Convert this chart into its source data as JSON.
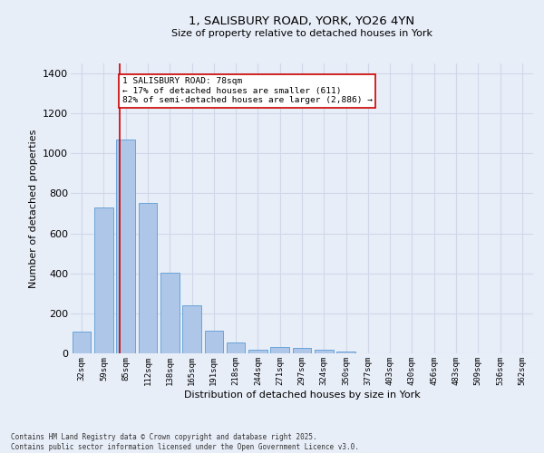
{
  "title_line1": "1, SALISBURY ROAD, YORK, YO26 4YN",
  "title_line2": "Size of property relative to detached houses in York",
  "xlabel": "Distribution of detached houses by size in York",
  "ylabel": "Number of detached properties",
  "categories": [
    "32sqm",
    "59sqm",
    "85sqm",
    "112sqm",
    "138sqm",
    "165sqm",
    "191sqm",
    "218sqm",
    "244sqm",
    "271sqm",
    "297sqm",
    "324sqm",
    "350sqm",
    "377sqm",
    "403sqm",
    "430sqm",
    "456sqm",
    "483sqm",
    "509sqm",
    "536sqm",
    "562sqm"
  ],
  "values": [
    110,
    730,
    1070,
    750,
    405,
    238,
    115,
    55,
    18,
    30,
    25,
    18,
    8,
    0,
    0,
    0,
    0,
    0,
    0,
    0,
    0
  ],
  "bar_color": "#aec6e8",
  "bar_edge_color": "#5b9bd5",
  "grid_color": "#d0d8e8",
  "background_color": "#e8eef8",
  "annotation_text_line1": "1 SALISBURY ROAD: 78sqm",
  "annotation_text_line2": "← 17% of detached houses are smaller (611)",
  "annotation_text_line3": "82% of semi-detached houses are larger (2,886) →",
  "annotation_box_color": "#ffffff",
  "annotation_line_color": "#cc0000",
  "ylim": [
    0,
    1450
  ],
  "yticks": [
    0,
    200,
    400,
    600,
    800,
    1000,
    1200,
    1400
  ],
  "footer_line1": "Contains HM Land Registry data © Crown copyright and database right 2025.",
  "footer_line2": "Contains public sector information licensed under the Open Government Licence v3.0."
}
